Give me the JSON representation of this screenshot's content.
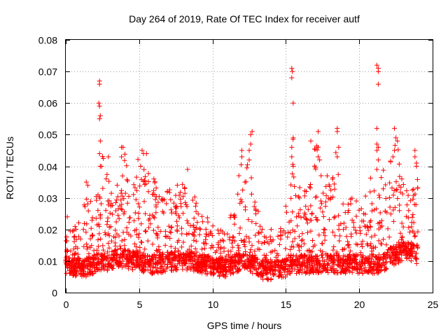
{
  "chart_data": {
    "type": "scatter",
    "title": "Day 264 of 2019, Rate Of TEC Index for receiver autf",
    "xlabel": "GPS time / hours",
    "ylabel": "ROTI / TECUs",
    "xlim": [
      0,
      25
    ],
    "ylim": [
      0,
      0.08
    ],
    "grid": true,
    "marker": "+",
    "color": "#ff0000",
    "x_ticks": [
      0,
      5,
      10,
      15,
      20,
      25
    ],
    "x_tick_labels": [
      "0",
      "5",
      "10",
      "15",
      "20",
      "25"
    ],
    "y_ticks": [
      0,
      0.01,
      0.02,
      0.03,
      0.04,
      0.05,
      0.06,
      0.07,
      0.08
    ],
    "y_tick_labels": [
      "0",
      "0.01",
      "0.02",
      "0.03",
      "0.04",
      "0.05",
      "0.06",
      "0.07",
      "0.08"
    ],
    "series": [
      {
        "name": "ROTI",
        "x_range": [
          0,
          24
        ],
        "profile_hours": [
          0,
          0.5,
          1,
          1.5,
          2,
          2.5,
          3,
          3.5,
          4,
          4.5,
          5,
          5.5,
          6,
          6.5,
          7,
          7.5,
          8,
          8.5,
          9,
          9.5,
          10,
          10.5,
          11,
          11.5,
          12,
          12.5,
          13,
          13.5,
          14,
          14.5,
          15,
          15.5,
          16,
          16.5,
          17,
          17.5,
          18,
          18.5,
          19,
          19.5,
          20,
          20.5,
          21,
          21.5,
          22,
          22.5,
          23,
          23.5,
          24
        ],
        "profile_base": [
          0.009,
          0.008,
          0.008,
          0.008,
          0.009,
          0.01,
          0.01,
          0.011,
          0.011,
          0.01,
          0.01,
          0.009,
          0.009,
          0.009,
          0.01,
          0.01,
          0.01,
          0.01,
          0.009,
          0.009,
          0.008,
          0.008,
          0.008,
          0.009,
          0.01,
          0.01,
          0.008,
          0.007,
          0.007,
          0.007,
          0.008,
          0.009,
          0.009,
          0.009,
          0.009,
          0.009,
          0.009,
          0.009,
          0.009,
          0.009,
          0.009,
          0.009,
          0.009,
          0.009,
          0.011,
          0.012,
          0.013,
          0.013,
          0.012
        ],
        "profile_envelope": [
          0.024,
          0.02,
          0.024,
          0.034,
          0.03,
          0.045,
          0.035,
          0.03,
          0.045,
          0.032,
          0.045,
          0.04,
          0.036,
          0.03,
          0.033,
          0.034,
          0.039,
          0.032,
          0.029,
          0.026,
          0.022,
          0.02,
          0.024,
          0.027,
          0.045,
          0.05,
          0.028,
          0.02,
          0.018,
          0.018,
          0.03,
          0.05,
          0.036,
          0.033,
          0.05,
          0.032,
          0.04,
          0.052,
          0.03,
          0.03,
          0.028,
          0.032,
          0.04,
          0.04,
          0.04,
          0.052,
          0.036,
          0.03,
          0.043
        ],
        "spikes": [
          {
            "x": 2.3,
            "y": 0.067
          },
          {
            "x": 2.3,
            "y": 0.066
          },
          {
            "x": 2.25,
            "y": 0.06
          },
          {
            "x": 2.3,
            "y": 0.059
          },
          {
            "x": 2.35,
            "y": 0.056
          },
          {
            "x": 2.3,
            "y": 0.055
          },
          {
            "x": 2.35,
            "y": 0.048
          },
          {
            "x": 2.3,
            "y": 0.044
          },
          {
            "x": 2.35,
            "y": 0.04
          },
          {
            "x": 2.9,
            "y": 0.043
          },
          {
            "x": 3.8,
            "y": 0.046
          },
          {
            "x": 3.9,
            "y": 0.046
          },
          {
            "x": 3.8,
            "y": 0.043
          },
          {
            "x": 5.2,
            "y": 0.045
          },
          {
            "x": 5.3,
            "y": 0.044
          },
          {
            "x": 5.1,
            "y": 0.04
          },
          {
            "x": 5.5,
            "y": 0.044
          },
          {
            "x": 8.3,
            "y": 0.039
          },
          {
            "x": 12.0,
            "y": 0.045
          },
          {
            "x": 12.0,
            "y": 0.043
          },
          {
            "x": 12.5,
            "y": 0.045
          },
          {
            "x": 12.7,
            "y": 0.051
          },
          {
            "x": 12.6,
            "y": 0.05
          },
          {
            "x": 12.6,
            "y": 0.047
          },
          {
            "x": 12.5,
            "y": 0.042
          },
          {
            "x": 15.4,
            "y": 0.071
          },
          {
            "x": 15.45,
            "y": 0.07
          },
          {
            "x": 15.4,
            "y": 0.068
          },
          {
            "x": 15.5,
            "y": 0.06
          },
          {
            "x": 15.5,
            "y": 0.049
          },
          {
            "x": 15.4,
            "y": 0.046
          },
          {
            "x": 15.4,
            "y": 0.043
          },
          {
            "x": 15.5,
            "y": 0.04
          },
          {
            "x": 16.7,
            "y": 0.048
          },
          {
            "x": 17.2,
            "y": 0.051
          },
          {
            "x": 17.2,
            "y": 0.046
          },
          {
            "x": 17.2,
            "y": 0.043
          },
          {
            "x": 17.3,
            "y": 0.042
          },
          {
            "x": 18.5,
            "y": 0.052
          },
          {
            "x": 18.5,
            "y": 0.051
          },
          {
            "x": 18.6,
            "y": 0.046
          },
          {
            "x": 18.5,
            "y": 0.043
          },
          {
            "x": 21.2,
            "y": 0.072
          },
          {
            "x": 21.3,
            "y": 0.071
          },
          {
            "x": 21.3,
            "y": 0.07
          },
          {
            "x": 21.3,
            "y": 0.066
          },
          {
            "x": 21.2,
            "y": 0.052
          },
          {
            "x": 21.2,
            "y": 0.047
          },
          {
            "x": 21.3,
            "y": 0.046
          },
          {
            "x": 21.2,
            "y": 0.045
          },
          {
            "x": 21.3,
            "y": 0.042
          },
          {
            "x": 21.2,
            "y": 0.039
          },
          {
            "x": 22.4,
            "y": 0.052
          },
          {
            "x": 22.5,
            "y": 0.049
          },
          {
            "x": 22.6,
            "y": 0.048
          },
          {
            "x": 22.4,
            "y": 0.045
          },
          {
            "x": 22.3,
            "y": 0.043
          },
          {
            "x": 23.8,
            "y": 0.045
          },
          {
            "x": 23.8,
            "y": 0.043
          },
          {
            "x": 23.9,
            "y": 0.041
          },
          {
            "x": 23.9,
            "y": 0.04
          },
          {
            "x": 0.1,
            "y": 0.024
          },
          {
            "x": 1.4,
            "y": 0.035
          },
          {
            "x": 3.5,
            "y": 0.034
          },
          {
            "x": 6.0,
            "y": 0.036
          },
          {
            "x": 7.6,
            "y": 0.034
          },
          {
            "x": 11.8,
            "y": 0.037
          },
          {
            "x": 14.0,
            "y": 0.02
          },
          {
            "x": 17.4,
            "y": 0.037
          },
          {
            "x": 19.8,
            "y": 0.029
          },
          {
            "x": 20.3,
            "y": 0.025
          },
          {
            "x": 22.9,
            "y": 0.036
          }
        ]
      }
    ]
  }
}
